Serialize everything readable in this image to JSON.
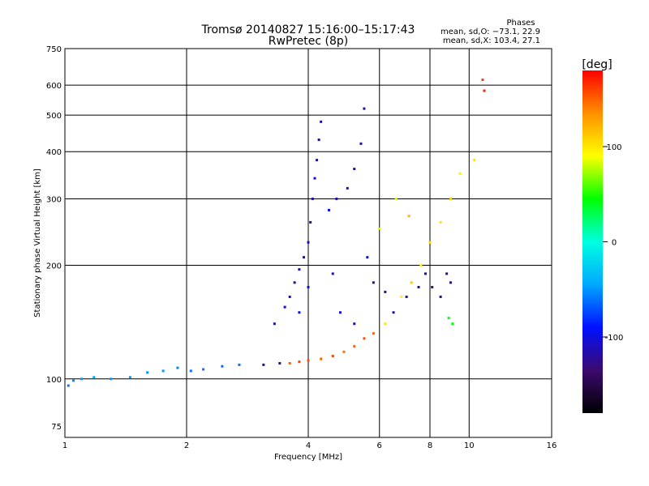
{
  "chart_data": {
    "type": "scatter",
    "title": "Tromsø 20140827 15:16:00–15:17:43",
    "subtitle": "RwPretec (8p)",
    "stats": {
      "header": "Phases",
      "line_o": "mean, sd,O: −73.1, 22.9",
      "line_x": "mean, sd,X: 103.4, 27.1"
    },
    "xlabel": "Frequency [MHz]",
    "ylabel": "Stationary phase Virtual Height [km]",
    "x_scale": "log",
    "y_scale": "log",
    "xlim": [
      1,
      16
    ],
    "ylim": [
      70,
      750
    ],
    "x_ticks": [
      1,
      2,
      4,
      6,
      8,
      10,
      16
    ],
    "y_ticks": [
      75,
      100,
      200,
      300,
      400,
      500,
      600,
      750
    ],
    "x_gridlines": [
      2,
      4,
      6,
      8,
      10
    ],
    "y_gridlines": [
      100,
      200,
      300,
      400,
      500,
      600
    ],
    "grid": true,
    "colorbar": {
      "label": "[deg]",
      "range": [
        -180,
        180
      ],
      "ticks": [
        100,
        0,
        -100
      ],
      "colors": [
        "#000000",
        "#3b0a6e",
        "#0010ff",
        "#00a8ff",
        "#00ffe0",
        "#00ff00",
        "#ffff00",
        "#ff9000",
        "#ff0000"
      ]
    },
    "series": [
      {
        "mode": "O",
        "phase_mean": -73.1,
        "phase_sd": 22.9,
        "points": [
          [
            1.02,
            96,
            -60
          ],
          [
            1.05,
            99,
            -55
          ],
          [
            1.1,
            100,
            -50
          ],
          [
            1.18,
            101,
            -45
          ],
          [
            1.3,
            100,
            -50
          ],
          [
            1.45,
            101,
            -48
          ],
          [
            1.6,
            104,
            -52
          ],
          [
            1.75,
            105,
            -50
          ],
          [
            1.9,
            107,
            -55
          ],
          [
            2.05,
            105,
            -60
          ],
          [
            2.2,
            106,
            -58
          ],
          [
            2.45,
            108,
            -62
          ],
          [
            2.7,
            109,
            -60
          ],
          [
            3.1,
            109,
            -110
          ],
          [
            3.4,
            110,
            -115
          ],
          [
            3.3,
            140,
            -100
          ],
          [
            3.5,
            155,
            -110
          ],
          [
            3.6,
            165,
            -105
          ],
          [
            3.7,
            180,
            -120
          ],
          [
            3.8,
            195,
            -110
          ],
          [
            3.9,
            210,
            -115
          ],
          [
            4.0,
            230,
            -120
          ],
          [
            4.05,
            260,
            -118
          ],
          [
            4.1,
            300,
            -112
          ],
          [
            4.15,
            340,
            -110
          ],
          [
            4.2,
            380,
            -108
          ],
          [
            4.25,
            430,
            -115
          ],
          [
            4.3,
            480,
            -120
          ],
          [
            4.5,
            280,
            -95
          ],
          [
            4.7,
            300,
            -100
          ],
          [
            5.0,
            320,
            -105
          ],
          [
            5.2,
            360,
            -110
          ],
          [
            5.4,
            420,
            -115
          ],
          [
            5.5,
            520,
            -118
          ],
          [
            5.6,
            210,
            -100
          ],
          [
            5.8,
            180,
            -112
          ],
          [
            6.2,
            170,
            -120
          ],
          [
            6.5,
            150,
            -115
          ],
          [
            7.0,
            165,
            -122
          ],
          [
            7.5,
            175,
            -118
          ],
          [
            7.8,
            190,
            -110
          ],
          [
            8.1,
            175,
            -130
          ],
          [
            8.5,
            165,
            -125
          ],
          [
            8.8,
            190,
            -128
          ],
          [
            9.0,
            180,
            -124
          ],
          [
            4.8,
            150,
            -105
          ],
          [
            5.2,
            140,
            -108
          ],
          [
            3.8,
            150,
            -95
          ],
          [
            4.0,
            175,
            -100
          ],
          [
            4.6,
            190,
            -105
          ]
        ]
      },
      {
        "mode": "X",
        "phase_mean": 103.4,
        "phase_sd": 27.1,
        "points": [
          [
            3.6,
            110,
            150
          ],
          [
            3.8,
            111,
            160
          ],
          [
            4.0,
            112,
            155
          ],
          [
            4.3,
            113,
            150
          ],
          [
            4.6,
            115,
            158
          ],
          [
            4.9,
            118,
            145
          ],
          [
            5.2,
            122,
            150
          ],
          [
            5.5,
            128,
            155
          ],
          [
            5.8,
            132,
            150
          ],
          [
            6.2,
            140,
            100
          ],
          [
            6.8,
            165,
            95
          ],
          [
            7.2,
            180,
            110
          ],
          [
            7.6,
            200,
            90
          ],
          [
            8.0,
            230,
            105
          ],
          [
            8.5,
            260,
            100
          ],
          [
            9.0,
            300,
            110
          ],
          [
            9.5,
            350,
            95
          ],
          [
            10.3,
            380,
            100
          ],
          [
            10.8,
            620,
            160
          ],
          [
            10.9,
            580,
            170
          ],
          [
            8.9,
            145,
            40
          ],
          [
            9.1,
            140,
            45
          ],
          [
            6.0,
            250,
            80
          ],
          [
            6.6,
            300,
            85
          ],
          [
            7.1,
            270,
            120
          ]
        ]
      }
    ]
  }
}
